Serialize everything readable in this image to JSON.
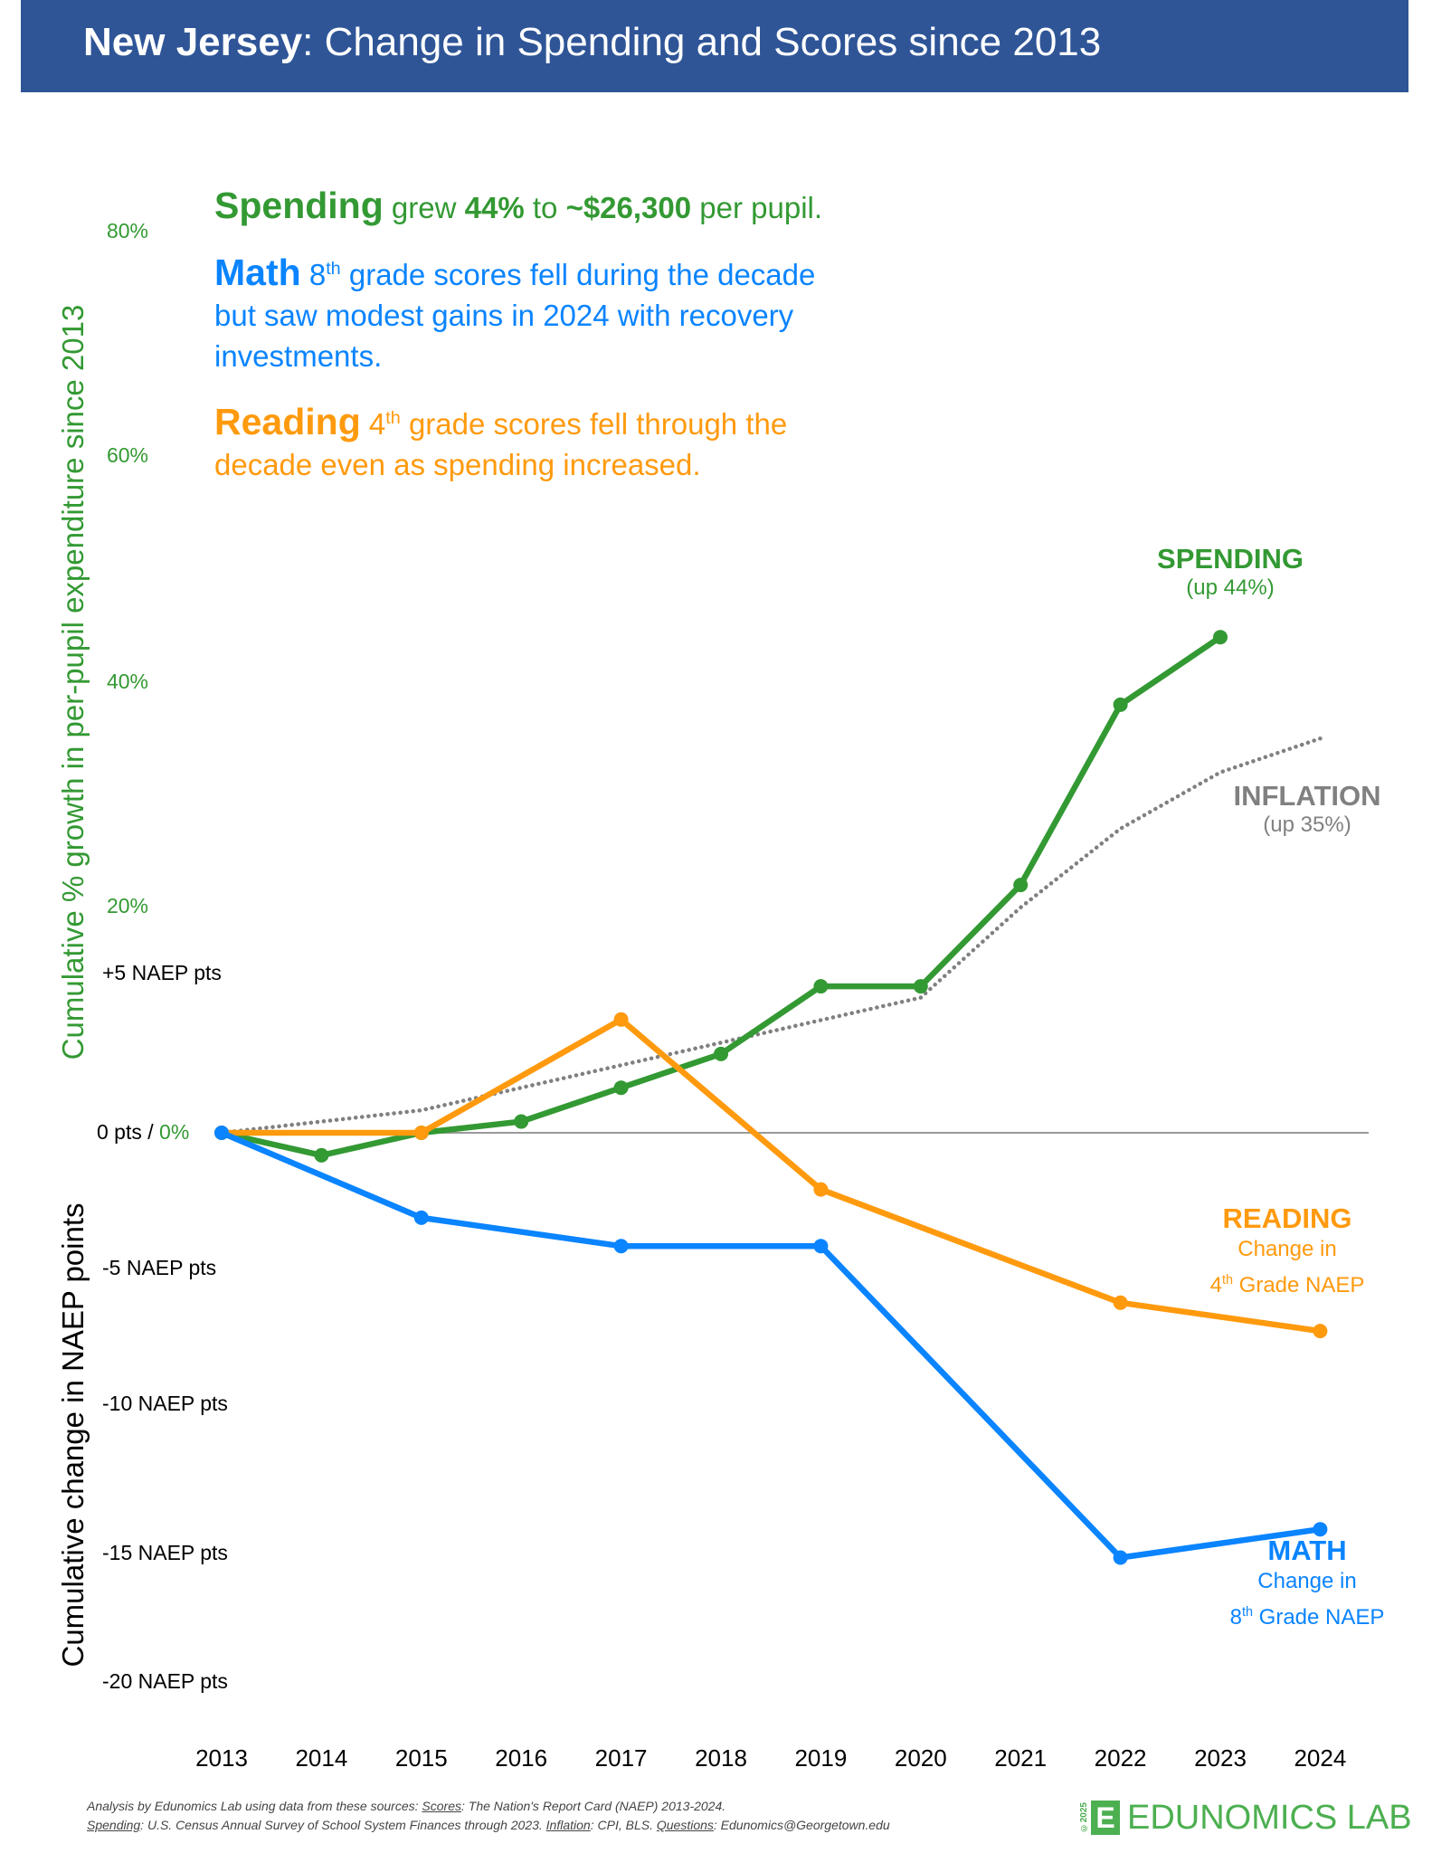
{
  "header": {
    "title_bold": "New Jersey",
    "title_rest": ": Change in Spending and Scores since 2013"
  },
  "annotations": {
    "spending": {
      "lead": "Spending",
      "t1": " grew ",
      "b1": "44%",
      "t2": " to ",
      "b2": "~$26,300",
      "t3": " per pupil."
    },
    "math": {
      "lead": "Math",
      "num": " 8",
      "sup": "th",
      "rest": " grade scores fell during the decade but saw modest gains in 2024 with recovery investments."
    },
    "reading": {
      "lead": "Reading",
      "num": " 4",
      "sup": "th",
      "rest": " grade scores fell through the decade even as spending increased."
    }
  },
  "colors": {
    "header": "#2f5597",
    "spending": "#339933",
    "math": "#0a84ff",
    "reading": "#ff9a0e",
    "inflation": "#808080",
    "zero_line": "#999999"
  },
  "chart_data": {
    "type": "line",
    "title": "New Jersey: Change in Spending and Scores since 2013",
    "x": [
      2013,
      2014,
      2015,
      2016,
      2017,
      2018,
      2019,
      2020,
      2021,
      2022,
      2023,
      2024
    ],
    "x_tick_labels": [
      "2013",
      "2014",
      "2015",
      "2016",
      "2017",
      "2018",
      "2019",
      "2020",
      "2021",
      "2022",
      "2023",
      "2024"
    ],
    "y_left_pct": {
      "label": "Cumulative % growth in per-pupil expenditure since 2013",
      "ticks": [
        "80%",
        "60%",
        "40%",
        "20%"
      ],
      "range": [
        -5,
        80
      ]
    },
    "y_left_naep": {
      "label": "Cumulative change in NAEP points",
      "ticks": [
        "+5 NAEP pts",
        "-5 NAEP pts",
        "-10 NAEP pts",
        "-15 NAEP pts",
        "-20 NAEP pts"
      ],
      "range": [
        -20,
        5
      ]
    },
    "zero_label": {
      "pts": "0 pts / ",
      "pct": "0%"
    },
    "grid": false,
    "series": [
      {
        "name": "SPENDING",
        "note": "(up 44%)",
        "axis": "pct",
        "markers": true,
        "x": [
          2013,
          2014,
          2015,
          2016,
          2017,
          2018,
          2019,
          2020,
          2021,
          2022,
          2023
        ],
        "values": [
          0,
          -2,
          0,
          1,
          4,
          7,
          13,
          13,
          22,
          38,
          44
        ]
      },
      {
        "name": "INFLATION",
        "note": "(up 35%)",
        "axis": "pct",
        "markers": false,
        "dotted": true,
        "x": [
          2013,
          2014,
          2015,
          2016,
          2017,
          2018,
          2019,
          2020,
          2021,
          2022,
          2023,
          2024
        ],
        "values": [
          0,
          1,
          2,
          4,
          6,
          8,
          10,
          12,
          20,
          27,
          32,
          35
        ]
      },
      {
        "name": "READING",
        "note1": "Change in",
        "note2_num": "4",
        "note2_sup": "th",
        "note2_rest": " Grade NAEP",
        "axis": "naep",
        "markers": true,
        "x": [
          2013,
          2015,
          2017,
          2019,
          2022,
          2024
        ],
        "values": [
          0,
          0,
          4,
          -2,
          -6,
          -7
        ]
      },
      {
        "name": "MATH",
        "note1": "Change in",
        "note2_num": "8",
        "note2_sup": "th",
        "note2_rest": " Grade NAEP",
        "axis": "naep",
        "markers": true,
        "x": [
          2013,
          2015,
          2017,
          2019,
          2022,
          2024
        ],
        "values": [
          0,
          -3,
          -4,
          -4,
          -15,
          -14
        ]
      }
    ]
  },
  "footer": {
    "line1": "Analysis by Edunomics Lab using data from these sources: ",
    "scores_label": "Scores",
    "scores_text": ": The Nation's Report Card (NAEP) 2013-2024.",
    "spending_label": "Spending",
    "spending_text": ": U.S. Census Annual Survey of School System Finances through 2023. ",
    "inflation_label": "Inflation",
    "inflation_text": ": CPI, BLS. ",
    "questions_label": "Questions",
    "questions_text": ": Edunomics@Georgetown.edu"
  },
  "logo": {
    "year": "©2025",
    "letter": "E",
    "name": "EDUNOMICS LAB"
  }
}
